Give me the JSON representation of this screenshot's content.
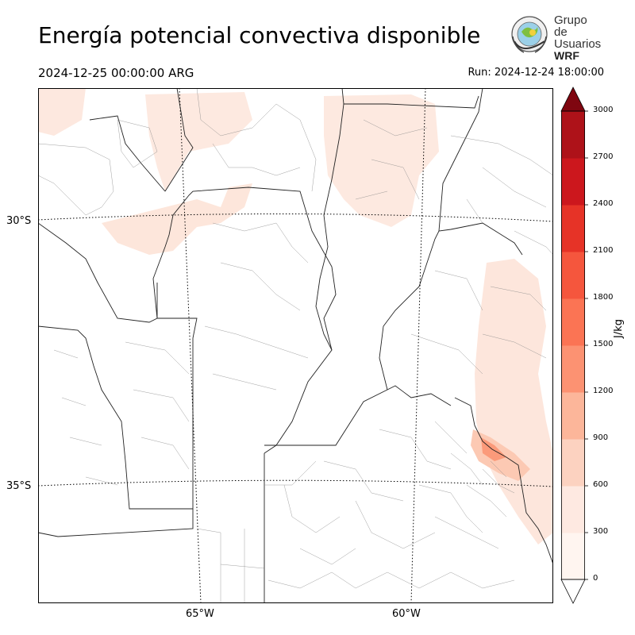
{
  "title": "Energía potencial convectiva disponible",
  "valid_time": "2024-12-25 00:00:00 ARG",
  "run_time": "Run: 2024-12-24 18:00:00",
  "logo": {
    "line1": "Grupo de",
    "line2": "Usuarios",
    "line3": "WRF",
    "icon": "globe-seal-icon"
  },
  "map": {
    "lat_labels": [
      "30°S",
      "35°S"
    ],
    "lon_labels": [
      "65°W",
      "60°W"
    ],
    "gridlines": "dotted",
    "field_colors": {
      "c0": "#fee9e1",
      "c1": "#fcd2c0",
      "c2": "#fcae92",
      "c3": "#fb8c6a",
      "c4": "#f6694b",
      "c5": "#ea3b2d",
      "c6": "#cc171d",
      "c7": "#aa1217",
      "c8": "#7a0510"
    }
  },
  "colorbar": {
    "unit": "J/kg",
    "ticks": [
      "0",
      "300",
      "600",
      "900",
      "1200",
      "1500",
      "1800",
      "2100",
      "2400",
      "2700",
      "3000"
    ],
    "levels": [
      0,
      300,
      600,
      900,
      1200,
      1500,
      1800,
      2100,
      2400,
      2700,
      3000
    ],
    "extend": "both",
    "colors": [
      "#fff5f0",
      "#fee9e1",
      "#fcd2c0",
      "#fcb69a",
      "#fc9272",
      "#fb7454",
      "#f5563d",
      "#e63327",
      "#cc171d",
      "#ae1219",
      "#7f0610"
    ]
  }
}
